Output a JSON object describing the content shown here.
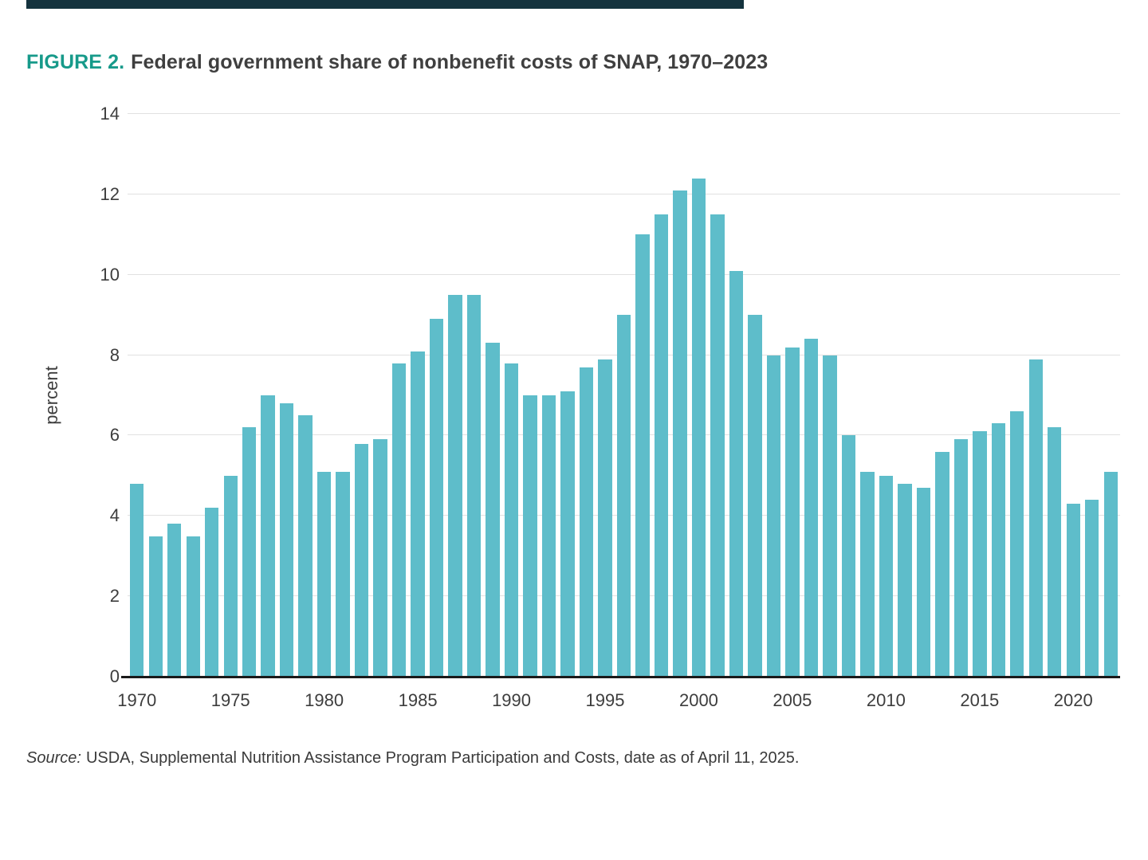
{
  "page": {
    "title_label": "FIGURE 2.",
    "title_text": "Federal government share of nonbenefit costs of SNAP, 1970–2023",
    "source_prefix": "Source:",
    "source_text": "USDA, Supplemental Nutrition Assistance Program Participation and Costs, date as of April 11, 2025."
  },
  "colors": {
    "bar": "#5ebdca",
    "accent": "#179a8a",
    "grid": "#e1e1e1",
    "axis": "#1a1a1a",
    "text": "#3d3d3d",
    "top_bar": "#14333e"
  },
  "chart_data": {
    "type": "bar",
    "title": "Federal government share of nonbenefit costs of SNAP, 1970–2023",
    "xlabel": "",
    "ylabel": "percent",
    "ylim": [
      0,
      14
    ],
    "ytick_step": 2,
    "grid": true,
    "legend": false,
    "start_year": 1970,
    "categories": [
      1970,
      1971,
      1972,
      1973,
      1974,
      1975,
      1976,
      1977,
      1978,
      1979,
      1980,
      1981,
      1982,
      1983,
      1984,
      1985,
      1986,
      1987,
      1988,
      1989,
      1990,
      1991,
      1992,
      1993,
      1994,
      1995,
      1996,
      1997,
      1998,
      1999,
      2000,
      2001,
      2002,
      2003,
      2004,
      2005,
      2006,
      2007,
      2008,
      2009,
      2010,
      2011,
      2012,
      2013,
      2014,
      2015,
      2016,
      2017,
      2018,
      2019,
      2020,
      2021,
      2022
    ],
    "values": [
      4.8,
      3.5,
      3.8,
      3.5,
      4.2,
      5.0,
      6.2,
      7.0,
      6.8,
      6.5,
      5.1,
      5.1,
      5.8,
      5.9,
      7.8,
      8.1,
      8.9,
      9.5,
      9.5,
      8.3,
      7.8,
      7.0,
      7.0,
      7.1,
      7.7,
      7.9,
      9.0,
      11.0,
      11.5,
      12.1,
      12.4,
      11.5,
      10.1,
      9.0,
      8.0,
      8.2,
      8.4,
      8.0,
      6.0,
      5.1,
      5.0,
      4.8,
      4.7,
      5.6,
      5.9,
      6.1,
      6.3,
      6.6,
      7.9,
      6.2,
      4.3,
      4.4,
      5.1
    ],
    "xtick_years": [
      1970,
      1975,
      1980,
      1985,
      1990,
      1995,
      2000,
      2005,
      2010,
      2015,
      2020
    ]
  }
}
